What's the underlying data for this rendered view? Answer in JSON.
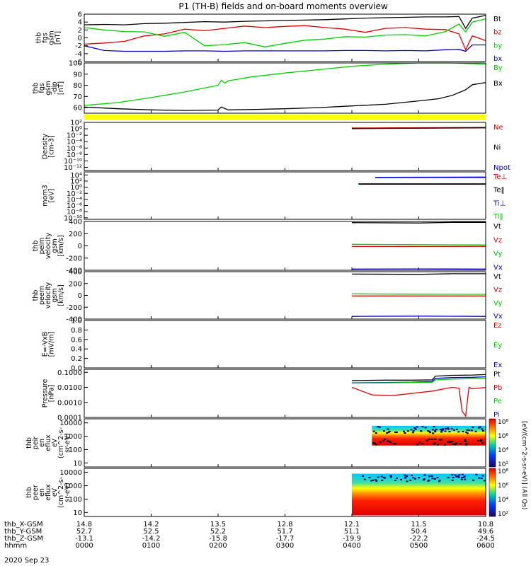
{
  "title": "P1 (TH-B) fields and on-board moments overview",
  "date": "2020 Sep 23",
  "chart_data": [
    {
      "type": "line",
      "ylabel": [
        "thb",
        "fgs",
        "gsm",
        "[nT]"
      ],
      "ylim": [
        -6,
        6
      ],
      "yticks": [
        "6",
        "4",
        "2",
        "0",
        "-2",
        "-4",
        "-6"
      ],
      "tick_values": [
        6,
        4,
        2,
        0,
        -2,
        -4,
        -6
      ],
      "legend": [
        {
          "label": "Bt",
          "color": "#000000"
        },
        {
          "label": "bz",
          "color": "#e00000"
        },
        {
          "label": "by",
          "color": "#00d000"
        },
        {
          "label": "bx",
          "color": "#0000d0"
        }
      ],
      "series": [
        {
          "name": "Bt",
          "color": "#000000",
          "x": [
            0,
            0.3,
            0.6,
            0.9,
            1.2,
            1.5,
            1.8,
            2.1,
            2.4,
            2.7,
            3.0,
            3.3,
            3.6,
            3.9,
            4.2,
            4.5,
            4.8,
            5.1,
            5.4,
            5.6,
            5.7,
            5.8,
            6.0
          ],
          "y": [
            3.3,
            3.4,
            3.3,
            3.6,
            3.7,
            3.9,
            4.1,
            4.0,
            4.2,
            4.3,
            4.4,
            4.5,
            4.6,
            4.8,
            5.0,
            5.1,
            5.2,
            5.3,
            5.3,
            5.4,
            2.4,
            5.0,
            5.7
          ]
        },
        {
          "name": "bz",
          "color": "#e00000",
          "x": [
            0,
            0.3,
            0.6,
            0.9,
            1.2,
            1.5,
            1.8,
            2.1,
            2.4,
            2.7,
            3.0,
            3.3,
            3.6,
            3.9,
            4.2,
            4.5,
            4.8,
            5.1,
            5.4,
            5.6,
            5.7,
            5.8,
            6.0
          ],
          "y": [
            -1.6,
            -1.3,
            -0.9,
            0.5,
            1.0,
            2.2,
            1.8,
            2.4,
            3.0,
            2.6,
            2.9,
            3.1,
            2.6,
            2.2,
            1.4,
            2.4,
            2.6,
            2.2,
            2.1,
            1.0,
            -3.0,
            0.5,
            -0.7
          ]
        },
        {
          "name": "by",
          "color": "#00d000",
          "x": [
            0,
            0.3,
            0.6,
            0.9,
            1.2,
            1.5,
            1.8,
            2.1,
            2.4,
            2.7,
            3.0,
            3.3,
            3.6,
            3.9,
            4.2,
            4.5,
            4.8,
            5.1,
            5.4,
            5.6,
            5.7,
            5.8,
            6.0
          ],
          "y": [
            2.6,
            2.0,
            1.6,
            1.5,
            0.4,
            1.4,
            -2.0,
            -1.7,
            -1.2,
            -2.3,
            -1.4,
            -0.6,
            -0.3,
            0.3,
            0.2,
            0.7,
            0.8,
            0.5,
            1.6,
            3.5,
            1.5,
            4.0,
            4.8
          ]
        },
        {
          "name": "bx",
          "color": "#0000d0",
          "x": [
            0,
            0.3,
            0.6,
            0.9,
            1.2,
            1.5,
            1.8,
            2.1,
            2.4,
            2.7,
            3.0,
            3.3,
            3.6,
            3.9,
            4.2,
            4.5,
            4.8,
            5.1,
            5.4,
            5.6,
            5.7,
            5.8,
            6.0
          ],
          "y": [
            -2.0,
            -3.2,
            -3.4,
            -3.4,
            -3.4,
            -3.3,
            -3.3,
            -3.4,
            -3.3,
            -3.3,
            -3.3,
            -3.3,
            -3.3,
            -3.2,
            -3.2,
            -3.3,
            -3.2,
            -3.3,
            -3.0,
            -2.9,
            -3.4,
            -1.8,
            -1.8
          ]
        }
      ]
    },
    {
      "type": "line",
      "ylabel": [
        "thb",
        "fgs",
        "gsm",
        "-dip",
        "[nT]"
      ],
      "ylim": [
        55,
        100
      ],
      "yticks": [
        "100",
        "90",
        "80",
        "70",
        "60"
      ],
      "tick_values": [
        100,
        90,
        80,
        70,
        60
      ],
      "legend": [
        {
          "label": "By",
          "color": "#00d000"
        },
        {
          "label": "Bx",
          "color": "#000000"
        }
      ],
      "series": [
        {
          "name": "By",
          "color": "#00d000",
          "x": [
            0,
            0.5,
            1.0,
            1.5,
            2.0,
            2.05,
            2.1,
            2.15,
            2.5,
            3.0,
            3.5,
            4.0,
            4.5,
            5.0,
            5.5,
            6.0
          ],
          "y": [
            62.0,
            64.5,
            69.0,
            74.0,
            80.0,
            84.5,
            82.0,
            84.0,
            87.5,
            91.0,
            94.0,
            97.0,
            99.0,
            100,
            100,
            99.0
          ]
        },
        {
          "name": "Bx",
          "color": "#000000",
          "x": [
            0,
            0.5,
            1.0,
            1.5,
            2.0,
            2.05,
            2.15,
            2.5,
            3.0,
            3.5,
            4.0,
            4.5,
            5.0,
            5.3,
            5.5,
            5.7,
            5.8,
            6.0
          ],
          "y": [
            60.5,
            59.0,
            58.0,
            57.5,
            57.8,
            60.5,
            58.0,
            58.3,
            59.0,
            60.0,
            61.5,
            63.0,
            66.0,
            68.0,
            71.0,
            76.0,
            80.5,
            82.5
          ]
        }
      ]
    },
    {
      "type": "line",
      "ylabel": [
        "Density",
        "[cm-3]"
      ],
      "ylim": [
        -13,
        2
      ],
      "log": true,
      "yticks": [
        "10²",
        "10⁰",
        "10⁻²",
        "10⁻⁴",
        "10⁻⁶",
        "10⁻⁸",
        "10⁻¹⁰",
        "10⁻¹²"
      ],
      "tick_values": [
        2,
        0,
        -2,
        -4,
        -6,
        -8,
        -10,
        -12
      ],
      "legend": [
        {
          "label": "Ne",
          "color": "#e00000"
        },
        {
          "label": "Ni",
          "color": "#000000"
        },
        {
          "label": "Npot",
          "color": "#0000d0"
        }
      ],
      "series": [
        {
          "name": "Ne",
          "color": "#e00000",
          "x": [
            4.0,
            6.0
          ],
          "y": [
            0.25,
            0.45
          ]
        },
        {
          "name": "Ni",
          "color": "#000000",
          "x": [
            4.0,
            6.0
          ],
          "y": [
            0.05,
            0.3
          ]
        }
      ]
    },
    {
      "type": "line",
      "ylabel": [
        "mom3",
        "[eV]"
      ],
      "ylim": [
        -10.5,
        5
      ],
      "log": true,
      "yticks": [
        "10⁴",
        "10²",
        "10⁰",
        "10⁻²",
        "10⁻⁴",
        "10⁻⁶",
        "10⁻⁸",
        "10⁻¹⁰"
      ],
      "tick_values": [
        4,
        2,
        0,
        -2,
        -4,
        -6,
        -8,
        -10
      ],
      "legend": [
        {
          "label": "Te⊥",
          "color": "#e00000"
        },
        {
          "label": "Te‖",
          "color": "#000000"
        },
        {
          "label": "Ti⊥",
          "color": "#0000d0"
        },
        {
          "label": "Ti‖",
          "color": "#00d000"
        }
      ],
      "series": [
        {
          "name": "Ti‖",
          "color": "#00d000",
          "x": [
            4.35,
            6.0
          ],
          "y": [
            3.1,
            3.1
          ]
        },
        {
          "name": "Ti⊥",
          "color": "#0000d0",
          "x": [
            4.35,
            6.0
          ],
          "y": [
            3.25,
            3.3
          ]
        },
        {
          "name": "Te⊥",
          "color": "#e00000",
          "x": [
            4.1,
            6.0
          ],
          "y": [
            1.15,
            1.15
          ]
        },
        {
          "name": "Te‖",
          "color": "#000000",
          "x": [
            4.1,
            6.0
          ],
          "y": [
            1.0,
            1.0
          ]
        }
      ]
    },
    {
      "type": "line",
      "ylabel": [
        "thb",
        "peim",
        "velocity",
        "gsm",
        "[km/s]"
      ],
      "ylim": [
        -400,
        400
      ],
      "yticks": [
        "400",
        "200",
        "0",
        "-200",
        "-400"
      ],
      "tick_values": [
        400,
        200,
        0,
        -200,
        -400
      ],
      "legend": [
        {
          "label": "Vt",
          "color": "#000000"
        },
        {
          "label": "Vz",
          "color": "#e00000"
        },
        {
          "label": "Vy",
          "color": "#00d000"
        },
        {
          "label": "Vx",
          "color": "#0000d0"
        }
      ],
      "series": [
        {
          "name": "Vt",
          "color": "#000000",
          "x": [
            4.0,
            5.0,
            5.5,
            6.0
          ],
          "y": [
            380,
            375,
            385,
            385
          ]
        },
        {
          "name": "Vy",
          "color": "#00d000",
          "x": [
            4.0,
            5.0,
            6.0
          ],
          "y": [
            25,
            20,
            15
          ]
        },
        {
          "name": "Vz",
          "color": "#e00000",
          "x": [
            4.0,
            5.0,
            6.0
          ],
          "y": [
            -10,
            -10,
            -8
          ]
        },
        {
          "name": "Vx",
          "color": "#0000d0",
          "x": [
            4.0,
            5.0,
            6.0
          ],
          "y": [
            -380,
            -378,
            -380
          ]
        }
      ]
    },
    {
      "type": "line",
      "ylabel": [
        "thb",
        "peem",
        "velocity",
        "gsm",
        "[km/s]"
      ],
      "ylim": [
        -400,
        400
      ],
      "yticks": [
        "400",
        "200",
        "0",
        "-200",
        "-400"
      ],
      "tick_values": [
        400,
        200,
        0,
        -200,
        -400
      ],
      "legend": [
        {
          "label": "Vt",
          "color": "#000000"
        },
        {
          "label": "Vz",
          "color": "#e00000"
        },
        {
          "label": "Vy",
          "color": "#00d000"
        },
        {
          "label": "Vx",
          "color": "#0000d0"
        }
      ],
      "series": [
        {
          "name": "Vt",
          "color": "#000000",
          "x": [
            4.0,
            5.0,
            5.5,
            6.0
          ],
          "y": [
            360,
            355,
            365,
            365
          ]
        },
        {
          "name": "Vy",
          "color": "#00d000",
          "x": [
            4.0,
            5.0,
            6.0
          ],
          "y": [
            25,
            20,
            18
          ]
        },
        {
          "name": "Vz",
          "color": "#e00000",
          "x": [
            4.0,
            5.0,
            6.0
          ],
          "y": [
            -10,
            -10,
            -10
          ]
        },
        {
          "name": "Vx",
          "color": "#0000d0",
          "x": [
            4.0,
            5.0,
            6.0
          ],
          "y": [
            -355,
            -350,
            -355
          ]
        }
      ]
    },
    {
      "type": "line",
      "ylabel": [
        "E=-VxB",
        "[mV/m]"
      ],
      "ylim": [
        0,
        1
      ],
      "yticks": [
        "1.0",
        "0.8",
        "0.6",
        "0.4",
        "0.2",
        "0.0"
      ],
      "tick_values": [
        1.0,
        0.8,
        0.6,
        0.4,
        0.2,
        0.0
      ],
      "legend": [
        {
          "label": "Ez",
          "color": "#e00000"
        },
        {
          "label": "Ey",
          "color": "#00d000"
        },
        {
          "label": "Ex",
          "color": "#0000d0"
        }
      ],
      "series": []
    },
    {
      "type": "line",
      "ylabel": [
        "Pressure",
        "[nPa]"
      ],
      "ylim": [
        -4,
        -0.8
      ],
      "log": true,
      "yticks": [
        "0.1000",
        "0.0100",
        "0.0010",
        "0.0001"
      ],
      "tick_values": [
        -1,
        -2,
        -3,
        -4
      ],
      "legend": [
        {
          "label": "Pt",
          "color": "#000000"
        },
        {
          "label": "Pb",
          "color": "#e00000"
        },
        {
          "label": "Pe",
          "color": "#00d000"
        },
        {
          "label": "Pi",
          "color": "#0000d0"
        }
      ],
      "series": [
        {
          "name": "Pt",
          "color": "#000000",
          "x": [
            4.0,
            4.5,
            4.9,
            5.2,
            5.25,
            5.5,
            5.8,
            6.0
          ],
          "y": [
            -1.55,
            -1.52,
            -1.52,
            -1.5,
            -1.25,
            -1.2,
            -1.18,
            -1.15
          ]
        },
        {
          "name": "Pi",
          "color": "#0000d0",
          "x": [
            4.0,
            4.5,
            4.9,
            5.2,
            5.25,
            5.5,
            5.8,
            6.0
          ],
          "y": [
            -1.7,
            -1.68,
            -1.65,
            -1.6,
            -1.4,
            -1.35,
            -1.33,
            -1.3
          ]
        },
        {
          "name": "Pe",
          "color": "#00d000",
          "x": [
            4.0,
            4.5,
            4.9,
            5.2,
            5.25,
            5.5,
            5.8,
            6.0
          ],
          "y": [
            -1.72,
            -1.7,
            -1.68,
            -1.66,
            -1.5,
            -1.45,
            -1.42,
            -1.4
          ]
        },
        {
          "name": "Pb",
          "color": "#e00000",
          "x": [
            4.0,
            4.3,
            4.6,
            4.9,
            5.2,
            5.5,
            5.6,
            5.65,
            5.7,
            5.75,
            5.8,
            6.0
          ],
          "y": [
            -2.0,
            -2.5,
            -2.55,
            -2.4,
            -2.25,
            -2.0,
            -2.05,
            -3.6,
            -3.9,
            -2.0,
            -2.1,
            -2.0
          ]
        }
      ]
    },
    {
      "type": "heatmap",
      "ylabel": [
        "thb",
        "peir",
        "en",
        "eflux",
        "eV",
        "(cm^2-s-",
        "sr-eV)"
      ],
      "ylim": [
        5,
        20000
      ],
      "log": true,
      "yticks": [
        "10000",
        "1000",
        "100",
        "10"
      ],
      "tick_values": [
        4,
        3,
        2,
        1
      ],
      "x_range": [
        4.3,
        6.0
      ],
      "y_range": [
        200,
        6000
      ],
      "colorbar": {
        "ticks": [
          "10⁸",
          "10⁶",
          "10⁴",
          "10²"
        ],
        "label": "[eV/(cm^2-s-sr-eV)] (All Qs)"
      }
    },
    {
      "type": "heatmap",
      "ylabel": [
        "thb",
        "peer",
        "en",
        "eflux",
        "eV",
        "(cm^2-s-",
        "sr-eV)"
      ],
      "ylim": [
        5,
        20000
      ],
      "log": true,
      "yticks": [
        "10000",
        "1000",
        "100",
        "10"
      ],
      "tick_values": [
        4,
        3,
        2,
        1
      ],
      "x_range": [
        4.0,
        6.0
      ],
      "y_range": [
        6,
        8000
      ],
      "colorbar": {
        "ticks": [
          "10⁸",
          "10⁶",
          "10⁴",
          "10²"
        ],
        "label": "[eV/(cm^2-s-sr-eV)] (All Qs)"
      }
    }
  ],
  "xaxis": {
    "row_labels": [
      "thb_X-GSM",
      "thb_Y-GSM",
      "thb_Z-GSM",
      "hhmm"
    ],
    "columns": [
      [
        "14.8",
        "52.7",
        "-13.1",
        "0000"
      ],
      [
        "14.2",
        "52.5",
        "-14.2",
        "0100"
      ],
      [
        "13.5",
        "52.2",
        "-15.8",
        "0200"
      ],
      [
        "12.8",
        "51.7",
        "-17.7",
        "0300"
      ],
      [
        "12.1",
        "51.1",
        "-19.9",
        "0400"
      ],
      [
        "11.5",
        "50.4",
        "-22.2",
        "0500"
      ],
      [
        "10.8",
        "49.6",
        "-24.5",
        "0600"
      ]
    ],
    "hour_values": [
      0,
      1,
      2,
      3,
      4,
      5,
      6
    ],
    "xlim": [
      0,
      6
    ]
  }
}
